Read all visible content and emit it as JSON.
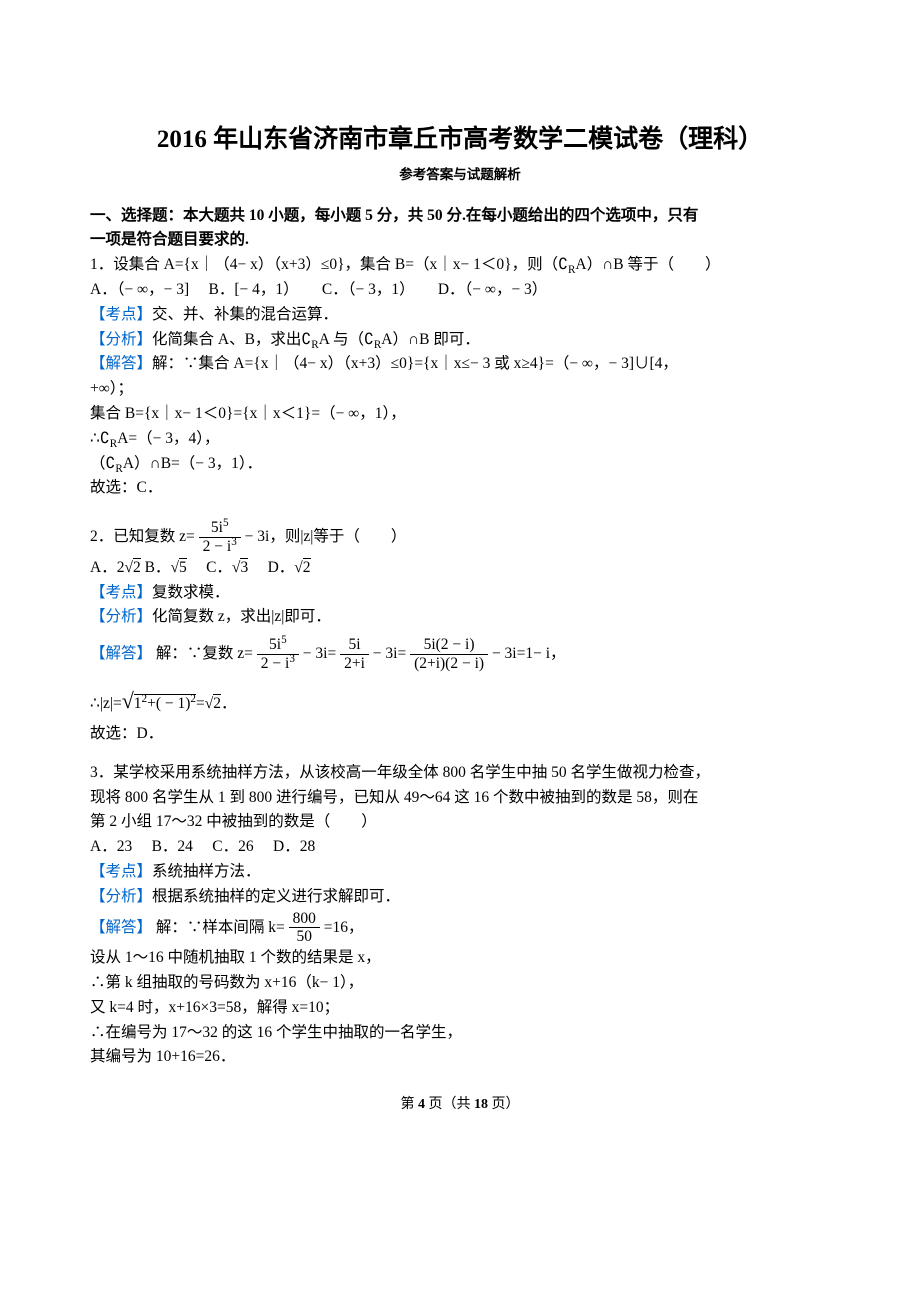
{
  "title": "2016 年山东省济南市章丘市高考数学二模试卷（理科）",
  "subtitle": "参考答案与试题解析",
  "section1": {
    "heading_l1": "一、选择题：本大题共 10 小题，每小题 5 分，共 50 分.在每小题给出的四个选项中，只有",
    "heading_l2": "一项是符合题目要求的."
  },
  "q1": {
    "stem": "1．设集合 A={x｜（4− x）（x+3）≤0}，集合 B=（x｜x− 1＜0}，则（∁<sub>R</sub>A）∩B 等于（　　）",
    "opts": "A．（− ∞，− 3]　 B．[− 4，1）　　C．（− 3，1）　　D．（− ∞，− 3）",
    "kd_label": "【考点】",
    "kd": "交、并、补集的混合运算．",
    "fx_label": "【分析】",
    "fx": "化简集合 A、B，求出∁<sub>R</sub>A 与（∁<sub>R</sub>A）∩B 即可．",
    "jd_label": "【解答】",
    "jd1": "解：∵集合 A={x｜（4− x）（x+3）≤0}={x｜x≤− 3 或 x≥4}=（− ∞，− 3]∪[4，",
    "jd1b": "+∞）；",
    "jd2": "集合 B={x｜x− 1＜0}={x｜x＜1}=（− ∞，1），",
    "jd3": "∴∁<sub>R</sub>A=（− 3，4），",
    "jd4": "（∁<sub>R</sub>A）∩B=（− 3，1）．",
    "jd5": "故选：C．"
  },
  "q2": {
    "stem_a": "2．已知复数 z=",
    "frac1_num": "5i<sup>5</sup>",
    "frac1_den": "2 − i<sup>3</sup>",
    "stem_b": "− 3i，则|z|等于（　　）",
    "optA_a": "A．2",
    "optA_b": "2",
    "optB_a": " B．",
    "optB_b": "5",
    "optC_a": "　C．",
    "optC_b": "3",
    "optD_a": "　D．",
    "optD_b": "2",
    "kd_label": "【考点】",
    "kd": "复数求模．",
    "fx_label": "【分析】",
    "fx": "化简复数 z，求出|z|即可．",
    "jd_label": "【解答】",
    "jd_a": "解：∵复数 z=",
    "f1n": "5i<sup>5</sup>",
    "f1d": "2 − i<sup>3</sup>",
    "jd_b": "− 3i=",
    "f2n": "5i",
    "f2d": "2+i",
    "jd_c": "− 3i=",
    "f3n": "5i(2 − i)",
    "f3d": "(2+i)(2 − i)",
    "jd_d": "− 3i=1− i，",
    "jd2a": "∴|z|=",
    "jd2_rad": "1<sup>2</sup>+( − 1)<sup>2</sup>",
    "jd2b": "=",
    "jd2_rad2": "2",
    "jd2c": "．",
    "jd3": "故选：D．"
  },
  "q3": {
    "l1": "3．某学校采用系统抽样方法，从该校高一年级全体 800 名学生中抽 50 名学生做视力检查，",
    "l2": "现将 800 名学生从 1 到 800 进行编号，已知从 49～64 这 16 个数中被抽到的数是 58，则在",
    "l3": "第 2 小组 17～32 中被抽到的数是（　　）",
    "opts": "A．23　 B．24　 C．26　 D．28",
    "kd_label": "【考点】",
    "kd": "系统抽样方法．",
    "fx_label": "【分析】",
    "fx": "根据系统抽样的定义进行求解即可．",
    "jd_label": "【解答】",
    "jd1a": "解：∵样本间隔 k=",
    "jd1_num": "800",
    "jd1_den": "50",
    "jd1b": "=16，",
    "jd2": "设从 1～16 中随机抽取 1 个数的结果是 x，",
    "jd3": "∴第 k 组抽取的号码数为 x+16（k− 1），",
    "jd4": "又 k=4 时，x+16×3=58，解得 x=10；",
    "jd5": "∴在编号为 17～32 的这 16 个学生中抽取的一名学生，",
    "jd6": "其编号为 10+16=26．"
  },
  "footer": {
    "a": "第",
    "b": "4",
    "c": "页（共",
    "d": "18",
    "e": "页）"
  }
}
